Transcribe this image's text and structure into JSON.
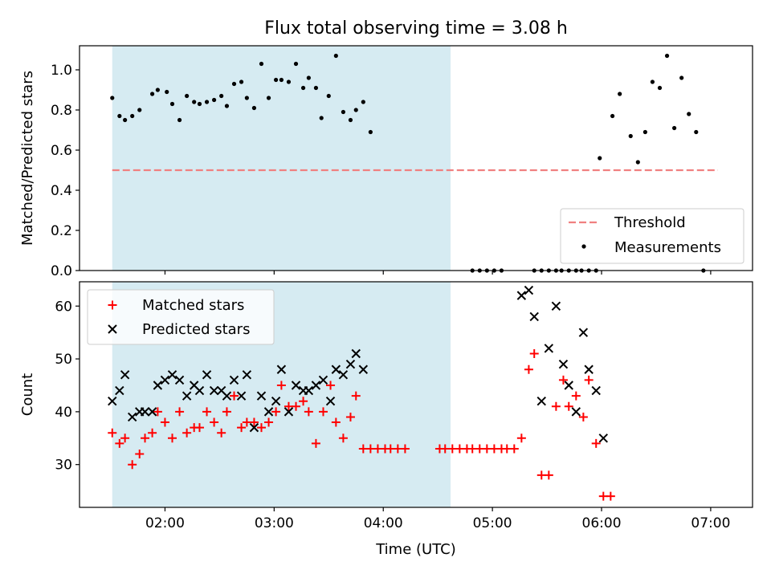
{
  "figure": {
    "title": "Flux total observing time = 3.08 h",
    "xlabel": "Time (UTC)"
  },
  "colors": {
    "shade": "#add8e6",
    "threshold": "#f08080",
    "measurement": "#000000",
    "matched": "#ff0000",
    "predicted": "#000000"
  },
  "chart_data": [
    {
      "type": "scatter",
      "ylabel": "Matched/Predicted stars",
      "xlim": [
        "01:13",
        "07:23"
      ],
      "ylim": [
        0,
        1.12
      ],
      "xticks": [
        "02:00",
        "03:00",
        "04:00",
        "05:00",
        "06:00",
        "07:00"
      ],
      "yticks": [
        "0.0",
        "0.2",
        "0.4",
        "0.6",
        "0.8",
        "1.0"
      ],
      "shaded_region": {
        "x": [
          "01:31",
          "04:37"
        ]
      },
      "legend": {
        "position": "lower right",
        "entries": [
          "Threshold",
          "Measurements"
        ]
      },
      "series": [
        {
          "name": "Threshold",
          "style": "dashed line",
          "x": [
            "01:31",
            "07:04"
          ],
          "y": [
            0.5,
            0.5
          ]
        },
        {
          "name": "Measurements",
          "style": "dots",
          "points": [
            [
              "01:31",
              0.86
            ],
            [
              "01:35",
              0.77
            ],
            [
              "01:38",
              0.75
            ],
            [
              "01:42",
              0.77
            ],
            [
              "01:46",
              0.8
            ],
            [
              "01:53",
              0.88
            ],
            [
              "01:56",
              0.9
            ],
            [
              "02:01",
              0.89
            ],
            [
              "02:04",
              0.83
            ],
            [
              "02:08",
              0.75
            ],
            [
              "02:12",
              0.87
            ],
            [
              "02:16",
              0.84
            ],
            [
              "02:19",
              0.83
            ],
            [
              "02:23",
              0.84
            ],
            [
              "02:27",
              0.85
            ],
            [
              "02:31",
              0.87
            ],
            [
              "02:34",
              0.82
            ],
            [
              "02:38",
              0.93
            ],
            [
              "02:42",
              0.94
            ],
            [
              "02:45",
              0.86
            ],
            [
              "02:49",
              0.81
            ],
            [
              "02:53",
              1.03
            ],
            [
              "02:57",
              0.86
            ],
            [
              "03:01",
              0.95
            ],
            [
              "03:04",
              0.95
            ],
            [
              "03:08",
              0.94
            ],
            [
              "03:12",
              1.03
            ],
            [
              "03:16",
              0.91
            ],
            [
              "03:19",
              0.96
            ],
            [
              "03:23",
              0.91
            ],
            [
              "03:26",
              0.76
            ],
            [
              "03:30",
              0.87
            ],
            [
              "03:34",
              1.07
            ],
            [
              "03:38",
              0.79
            ],
            [
              "03:42",
              0.75
            ],
            [
              "03:45",
              0.8
            ],
            [
              "03:49",
              0.84
            ],
            [
              "03:53",
              0.69
            ],
            [
              "04:49",
              0.0
            ],
            [
              "04:53",
              0.0
            ],
            [
              "04:57",
              0.0
            ],
            [
              "05:01",
              0.0
            ],
            [
              "05:05",
              0.0
            ],
            [
              "05:23",
              0.0
            ],
            [
              "05:27",
              0.0
            ],
            [
              "05:31",
              0.0
            ],
            [
              "05:35",
              0.0
            ],
            [
              "05:38",
              0.0
            ],
            [
              "05:42",
              0.0
            ],
            [
              "05:46",
              0.0
            ],
            [
              "05:49",
              0.0
            ],
            [
              "05:53",
              0.0
            ],
            [
              "05:57",
              0.0
            ],
            [
              "05:59",
              0.56
            ],
            [
              "06:06",
              0.77
            ],
            [
              "06:10",
              0.88
            ],
            [
              "06:16",
              0.67
            ],
            [
              "06:20",
              0.54
            ],
            [
              "06:24",
              0.69
            ],
            [
              "06:28",
              0.94
            ],
            [
              "06:32",
              0.91
            ],
            [
              "06:36",
              1.07
            ],
            [
              "06:40",
              0.71
            ],
            [
              "06:44",
              0.96
            ],
            [
              "06:48",
              0.78
            ],
            [
              "06:52",
              0.69
            ],
            [
              "06:56",
              0.0
            ]
          ]
        }
      ]
    },
    {
      "type": "scatter",
      "ylabel": "Count",
      "xlabel": "Time (UTC)",
      "xlim": [
        "01:13",
        "07:23"
      ],
      "ylim": [
        21.9,
        64.6
      ],
      "xticks": [
        "02:00",
        "03:00",
        "04:00",
        "05:00",
        "06:00",
        "07:00"
      ],
      "yticks": [
        "30",
        "40",
        "50",
        "60"
      ],
      "shaded_region": {
        "x": [
          "01:31",
          "04:37"
        ]
      },
      "legend": {
        "position": "upper left",
        "entries": [
          "Matched stars",
          "Predicted stars"
        ]
      },
      "series": [
        {
          "name": "Matched stars",
          "marker": "+",
          "points": [
            [
              "01:31",
              36
            ],
            [
              "01:35",
              34
            ],
            [
              "01:38",
              35
            ],
            [
              "01:42",
              30
            ],
            [
              "01:46",
              32
            ],
            [
              "01:49",
              35
            ],
            [
              "01:53",
              36
            ],
            [
              "01:56",
              40
            ],
            [
              "02:00",
              38
            ],
            [
              "02:04",
              35
            ],
            [
              "02:08",
              40
            ],
            [
              "02:12",
              36
            ],
            [
              "02:16",
              37
            ],
            [
              "02:19",
              37
            ],
            [
              "02:23",
              40
            ],
            [
              "02:27",
              38
            ],
            [
              "02:31",
              36
            ],
            [
              "02:34",
              40
            ],
            [
              "02:38",
              43
            ],
            [
              "02:42",
              37
            ],
            [
              "02:45",
              38
            ],
            [
              "02:49",
              38
            ],
            [
              "02:53",
              37
            ],
            [
              "02:57",
              38
            ],
            [
              "03:01",
              40
            ],
            [
              "03:04",
              45
            ],
            [
              "03:08",
              41
            ],
            [
              "03:12",
              41
            ],
            [
              "03:16",
              42
            ],
            [
              "03:19",
              40
            ],
            [
              "03:23",
              34
            ],
            [
              "03:27",
              40
            ],
            [
              "03:31",
              45
            ],
            [
              "03:34",
              38
            ],
            [
              "03:38",
              35
            ],
            [
              "03:42",
              39
            ],
            [
              "03:45",
              43
            ],
            [
              "03:49",
              33
            ],
            [
              "03:53",
              33
            ],
            [
              "03:57",
              33
            ],
            [
              "04:01",
              33
            ],
            [
              "04:04",
              33
            ],
            [
              "04:08",
              33
            ],
            [
              "04:12",
              33
            ],
            [
              "04:31",
              33
            ],
            [
              "04:34",
              33
            ],
            [
              "04:38",
              33
            ],
            [
              "04:42",
              33
            ],
            [
              "04:46",
              33
            ],
            [
              "04:49",
              33
            ],
            [
              "04:53",
              33
            ],
            [
              "04:57",
              33
            ],
            [
              "05:01",
              33
            ],
            [
              "05:05",
              33
            ],
            [
              "05:08",
              33
            ],
            [
              "05:12",
              33
            ],
            [
              "05:16",
              35
            ],
            [
              "05:20",
              48
            ],
            [
              "05:23",
              51
            ],
            [
              "05:27",
              28
            ],
            [
              "05:31",
              28
            ],
            [
              "05:35",
              41
            ],
            [
              "05:39",
              46
            ],
            [
              "05:42",
              41
            ],
            [
              "05:46",
              43
            ],
            [
              "05:50",
              39
            ],
            [
              "05:53",
              46
            ],
            [
              "05:57",
              34
            ],
            [
              "06:01",
              24
            ],
            [
              "06:05",
              24
            ]
          ]
        },
        {
          "name": "Predicted stars",
          "marker": "x",
          "points": [
            [
              "01:31",
              42
            ],
            [
              "01:35",
              44
            ],
            [
              "01:38",
              47
            ],
            [
              "01:42",
              39
            ],
            [
              "01:46",
              40
            ],
            [
              "01:49",
              40
            ],
            [
              "01:53",
              40
            ],
            [
              "01:56",
              45
            ],
            [
              "02:00",
              46
            ],
            [
              "02:04",
              47
            ],
            [
              "02:08",
              46
            ],
            [
              "02:12",
              43
            ],
            [
              "02:16",
              45
            ],
            [
              "02:19",
              44
            ],
            [
              "02:23",
              47
            ],
            [
              "02:27",
              44
            ],
            [
              "02:31",
              44
            ],
            [
              "02:34",
              43
            ],
            [
              "02:38",
              46
            ],
            [
              "02:42",
              43
            ],
            [
              "02:45",
              47
            ],
            [
              "02:49",
              37
            ],
            [
              "02:53",
              43
            ],
            [
              "02:57",
              40
            ],
            [
              "03:01",
              42
            ],
            [
              "03:04",
              48
            ],
            [
              "03:08",
              40
            ],
            [
              "03:12",
              45
            ],
            [
              "03:16",
              44
            ],
            [
              "03:19",
              44
            ],
            [
              "03:23",
              45
            ],
            [
              "03:27",
              46
            ],
            [
              "03:31",
              42
            ],
            [
              "03:34",
              48
            ],
            [
              "03:38",
              47
            ],
            [
              "03:42",
              49
            ],
            [
              "03:45",
              51
            ],
            [
              "03:49",
              48
            ],
            [
              "05:16",
              62
            ],
            [
              "05:20",
              63
            ],
            [
              "05:23",
              58
            ],
            [
              "05:27",
              42
            ],
            [
              "05:31",
              52
            ],
            [
              "05:35",
              60
            ],
            [
              "05:39",
              49
            ],
            [
              "05:42",
              45
            ],
            [
              "05:46",
              40
            ],
            [
              "05:50",
              55
            ],
            [
              "05:53",
              48
            ],
            [
              "05:57",
              44
            ],
            [
              "06:01",
              35
            ]
          ]
        }
      ]
    }
  ]
}
